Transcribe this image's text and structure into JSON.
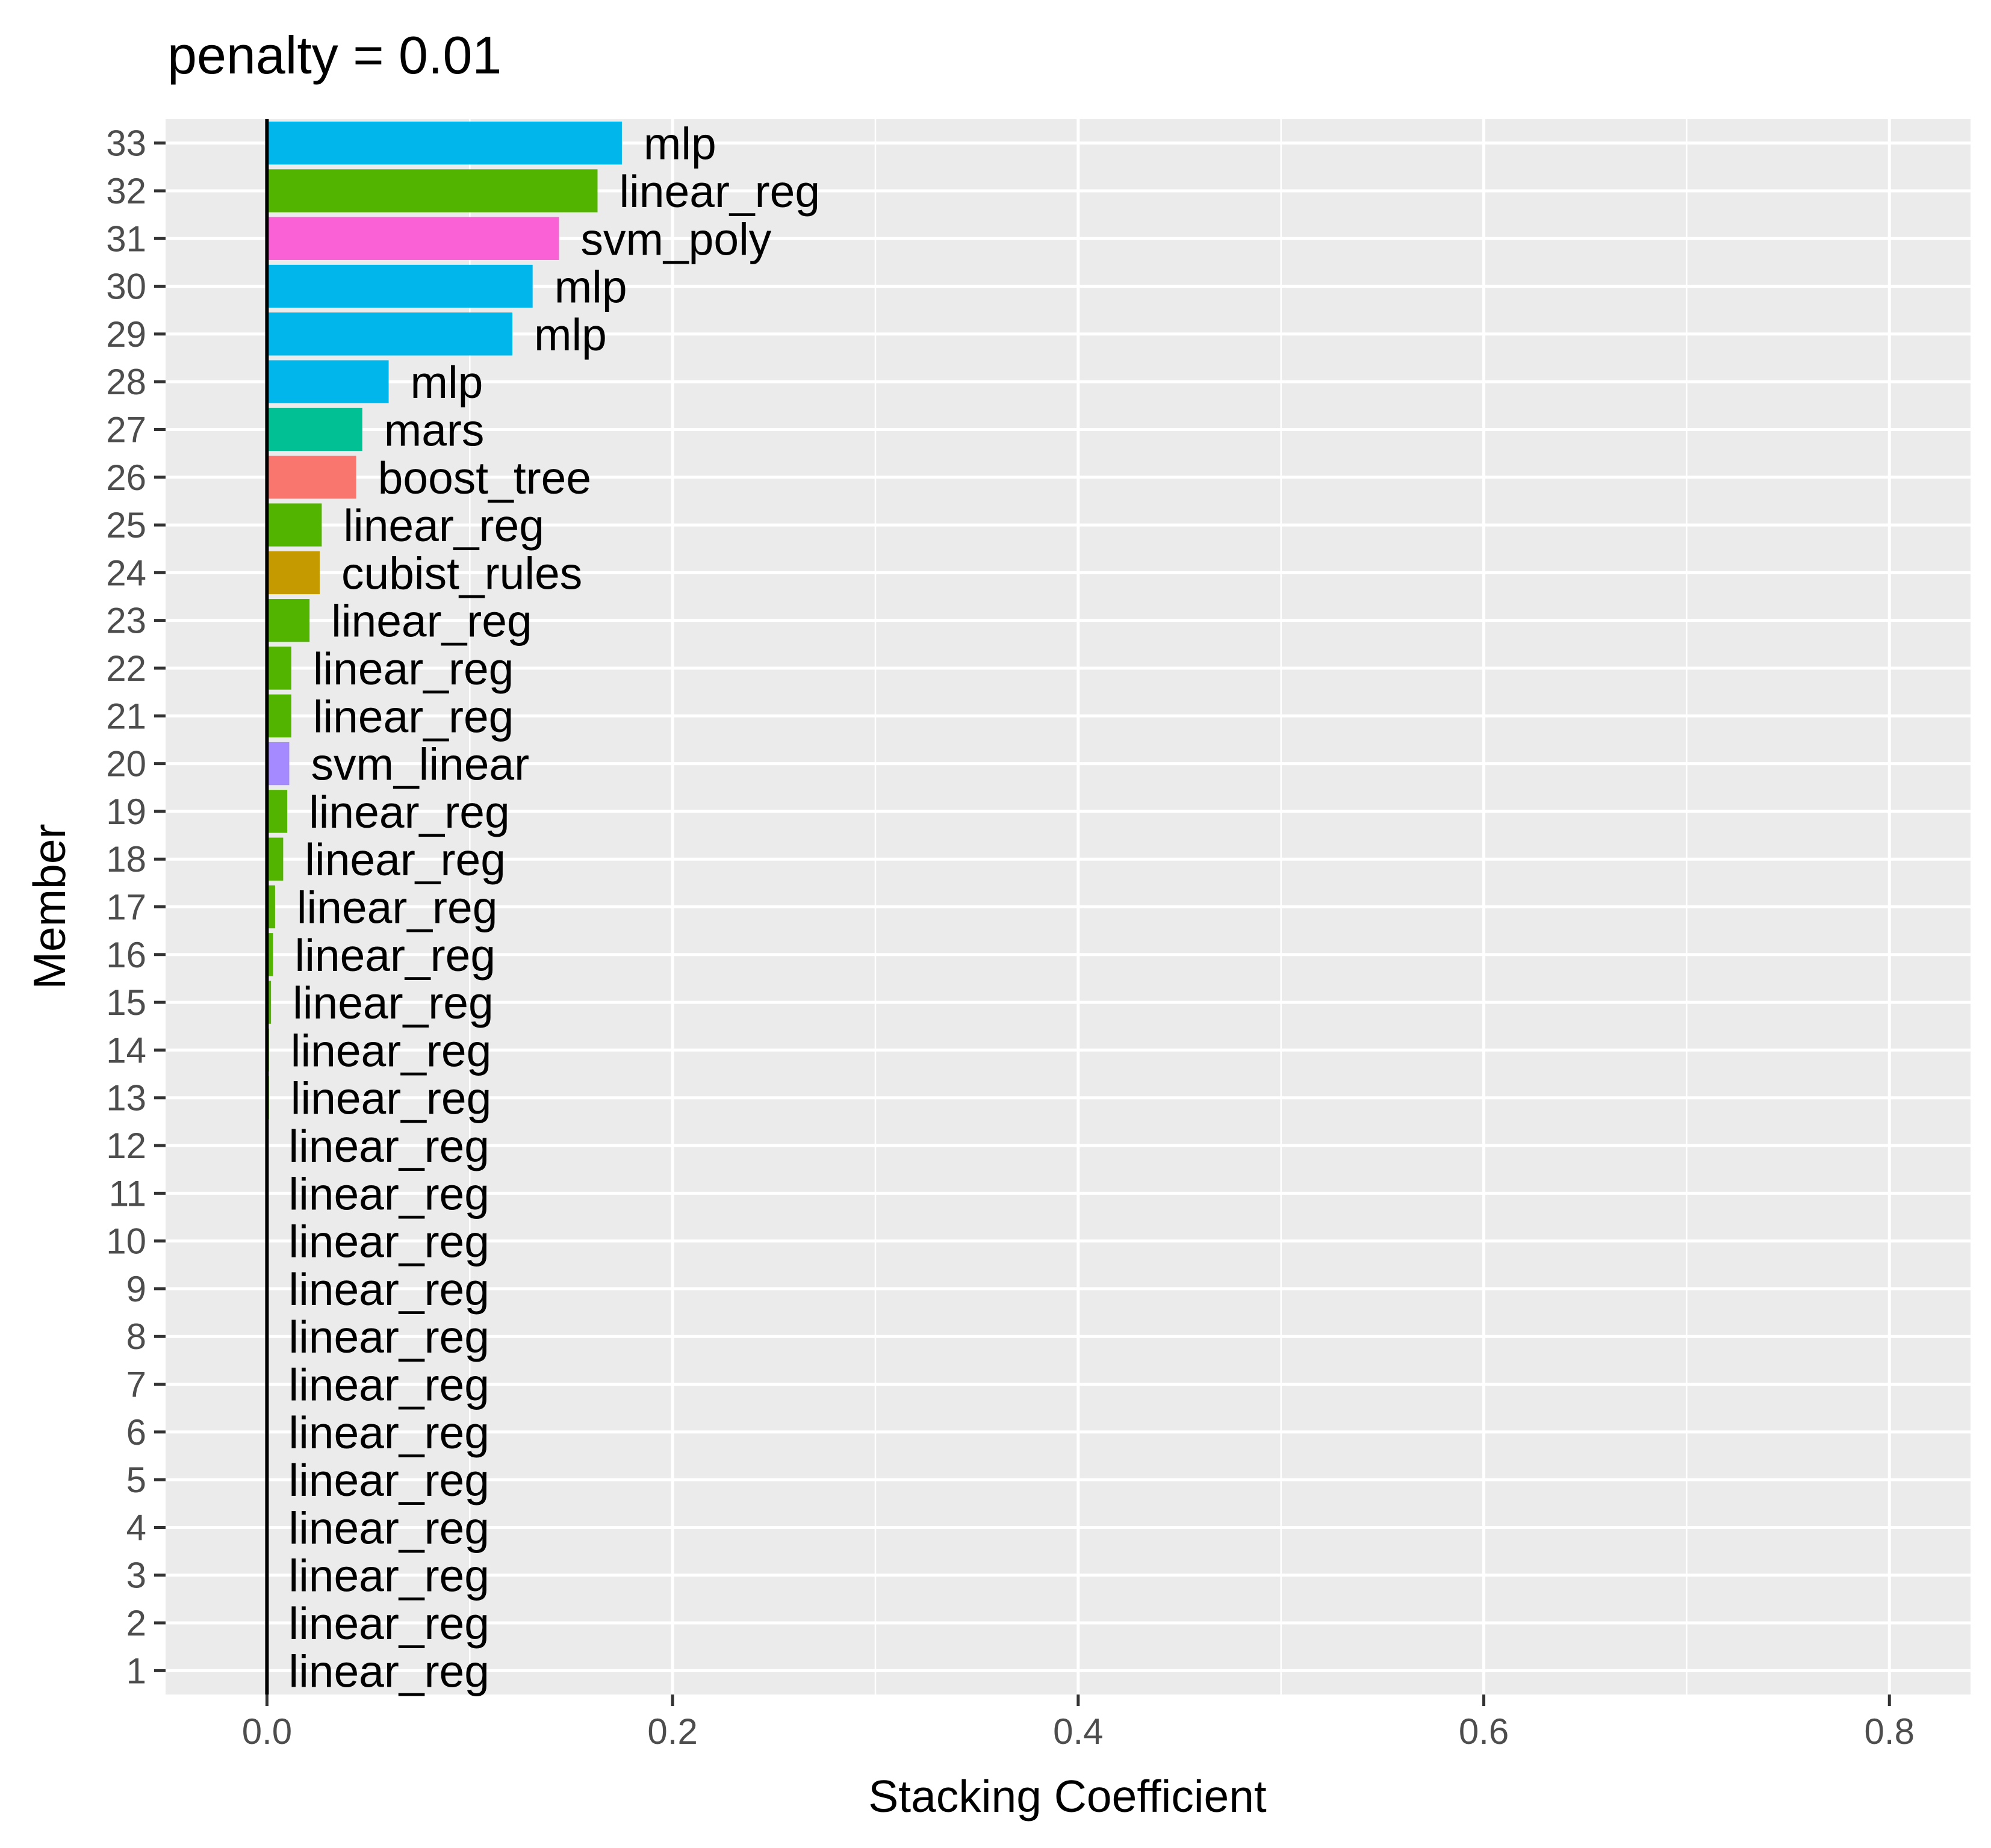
{
  "chart_data": {
    "type": "bar",
    "orientation": "horizontal",
    "title": "penalty = 0.01",
    "xlabel": "Stacking Coefficient",
    "ylabel": "Member",
    "xlim": [
      -0.05,
      0.84
    ],
    "x_ticks": [
      0.0,
      0.2,
      0.4,
      0.6,
      0.8
    ],
    "x_tick_labels": [
      "0.0",
      "0.2",
      "0.4",
      "0.6",
      "0.8"
    ],
    "grid": true,
    "legend": "none",
    "colors": {
      "boost_tree": "#F8766D",
      "cubist_rules": "#C49A00",
      "linear_reg": "#53B400",
      "mars": "#00C094",
      "mlp": "#00B6EB",
      "svm_linear": "#A58AFF",
      "svm_poly": "#FB61D7"
    },
    "bars": [
      {
        "member": "1",
        "model": "linear_reg",
        "value": 0.0
      },
      {
        "member": "2",
        "model": "linear_reg",
        "value": 0.0
      },
      {
        "member": "3",
        "model": "linear_reg",
        "value": 0.0
      },
      {
        "member": "4",
        "model": "linear_reg",
        "value": 0.0
      },
      {
        "member": "5",
        "model": "linear_reg",
        "value": 0.0
      },
      {
        "member": "6",
        "model": "linear_reg",
        "value": 0.0
      },
      {
        "member": "7",
        "model": "linear_reg",
        "value": 0.0
      },
      {
        "member": "8",
        "model": "linear_reg",
        "value": 0.0
      },
      {
        "member": "9",
        "model": "linear_reg",
        "value": 0.0
      },
      {
        "member": "10",
        "model": "linear_reg",
        "value": 0.0
      },
      {
        "member": "11",
        "model": "linear_reg",
        "value": 0.0
      },
      {
        "member": "12",
        "model": "linear_reg",
        "value": 0.0
      },
      {
        "member": "13",
        "model": "linear_reg",
        "value": 0.001
      },
      {
        "member": "14",
        "model": "linear_reg",
        "value": 0.001
      },
      {
        "member": "15",
        "model": "linear_reg",
        "value": 0.002
      },
      {
        "member": "16",
        "model": "linear_reg",
        "value": 0.003
      },
      {
        "member": "17",
        "model": "linear_reg",
        "value": 0.004
      },
      {
        "member": "18",
        "model": "linear_reg",
        "value": 0.008
      },
      {
        "member": "19",
        "model": "linear_reg",
        "value": 0.01
      },
      {
        "member": "20",
        "model": "svm_linear",
        "value": 0.011
      },
      {
        "member": "21",
        "model": "linear_reg",
        "value": 0.012
      },
      {
        "member": "22",
        "model": "linear_reg",
        "value": 0.012
      },
      {
        "member": "23",
        "model": "linear_reg",
        "value": 0.021
      },
      {
        "member": "24",
        "model": "cubist_rules",
        "value": 0.026
      },
      {
        "member": "25",
        "model": "linear_reg",
        "value": 0.027
      },
      {
        "member": "26",
        "model": "boost_tree",
        "value": 0.044
      },
      {
        "member": "27",
        "model": "mars",
        "value": 0.047
      },
      {
        "member": "28",
        "model": "mlp",
        "value": 0.06
      },
      {
        "member": "29",
        "model": "mlp",
        "value": 0.121
      },
      {
        "member": "30",
        "model": "mlp",
        "value": 0.131
      },
      {
        "member": "31",
        "model": "svm_poly",
        "value": 0.144
      },
      {
        "member": "32",
        "model": "linear_reg",
        "value": 0.163
      },
      {
        "member": "33",
        "model": "mlp",
        "value": 0.175
      }
    ]
  }
}
